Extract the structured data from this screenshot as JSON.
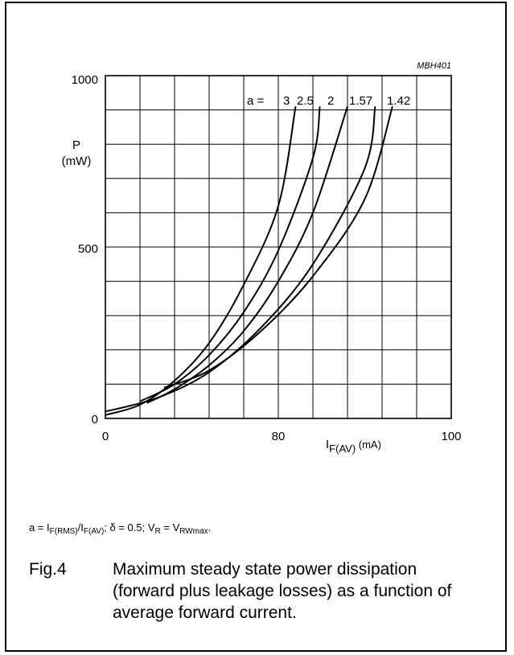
{
  "chart_data": {
    "type": "line",
    "code": "MBH401",
    "y_label_line1": "P",
    "y_label_line2": "(mW)",
    "x_label_main": "I",
    "x_label_sub": "F(AV)",
    "x_label_unit": " (mA)",
    "xlim": [
      0,
      100
    ],
    "ylim": [
      0,
      1000
    ],
    "x_ticks": [
      0,
      80,
      100
    ],
    "y_ticks": [
      0,
      500,
      1000
    ],
    "grid": true,
    "series_label_prefix": "a = ",
    "series": [
      {
        "name": "3",
        "x": [
          0,
          10,
          20,
          30,
          40,
          50,
          55
        ],
        "y": [
          10,
          40,
          110,
          220,
          390,
          620,
          910
        ]
      },
      {
        "name": "2.5",
        "x": [
          10,
          20,
          30,
          40,
          50,
          60,
          62
        ],
        "y": [
          50,
          100,
          185,
          310,
          490,
          760,
          910
        ]
      },
      {
        "name": "2",
        "x": [
          12,
          20,
          30,
          40,
          50,
          60,
          70
        ],
        "y": [
          45,
          85,
          155,
          255,
          400,
          600,
          910
        ]
      },
      {
        "name": "1.57",
        "x": [
          0,
          15,
          30,
          45,
          60,
          75,
          78
        ],
        "y": [
          20,
          60,
          135,
          265,
          450,
          730,
          910
        ]
      },
      {
        "name": "1.42",
        "x": [
          17,
          30,
          45,
          60,
          75,
          83
        ],
        "y": [
          90,
          140,
          255,
          415,
          640,
          910
        ]
      }
    ]
  },
  "note": {
    "a_eq": "a = I",
    "sub1": "F(RMS)",
    "slash": "/I",
    "sub2": "F(AV)",
    "delta": "; δ = 0.5; V",
    "sub3": "R",
    "eq": " = V",
    "sub4": "RWmax",
    "end": "."
  },
  "caption": {
    "fig": "Fig.4",
    "text": "Maximum steady state power dissipation (forward plus leakage losses) as a function of average forward current."
  }
}
